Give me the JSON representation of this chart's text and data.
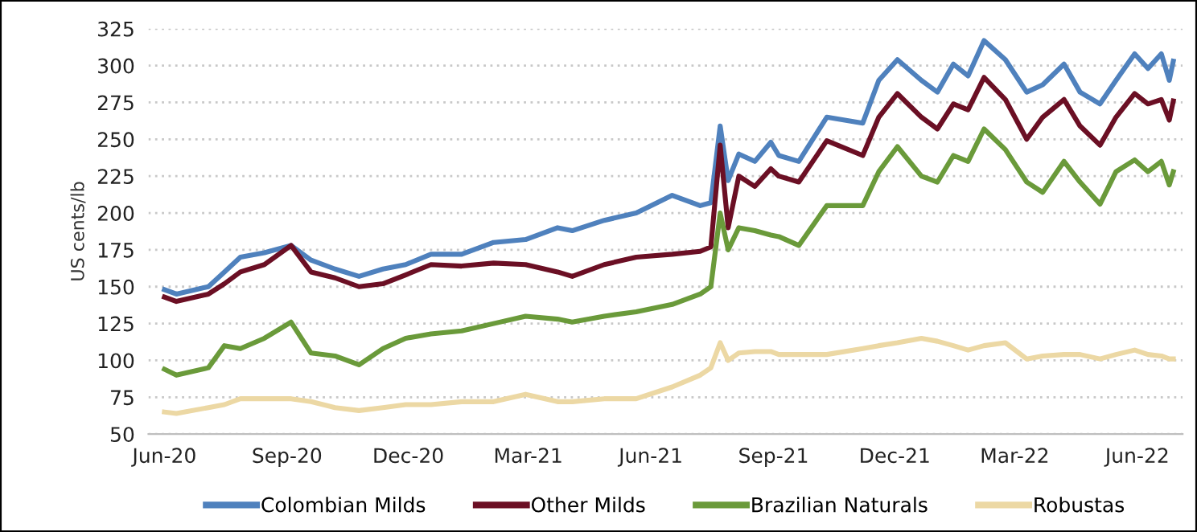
{
  "chart_data": {
    "type": "line",
    "ylabel": "US cents/lb",
    "x": [
      "2020-06-01",
      "2020-06-10",
      "2020-07-04",
      "2020-07-16",
      "2020-07-28",
      "2020-08-15",
      "2020-09-04",
      "2020-09-19",
      "2020-10-07",
      "2020-10-25",
      "2020-11-12",
      "2020-11-29",
      "2020-12-18",
      "2021-01-10",
      "2021-02-03",
      "2021-02-27",
      "2021-03-23",
      "2021-04-03",
      "2021-04-27",
      "2021-05-21",
      "2021-06-17",
      "2021-07-08",
      "2021-07-16",
      "2021-07-23",
      "2021-07-29",
      "2021-08-06",
      "2021-08-18",
      "2021-08-30",
      "2021-09-05",
      "2021-09-20",
      "2021-10-11",
      "2021-11-07",
      "2021-11-19",
      "2021-12-03",
      "2021-12-21",
      "2022-01-02",
      "2022-01-14",
      "2022-01-25",
      "2022-02-06",
      "2022-02-22",
      "2022-03-10",
      "2022-03-22",
      "2022-04-07",
      "2022-04-19",
      "2022-05-04",
      "2022-05-16",
      "2022-05-30",
      "2022-06-09",
      "2022-06-19",
      "2022-06-25",
      "2022-06-28"
    ],
    "series": [
      {
        "name": "Colombian Milds",
        "color": "#4f81bd",
        "values": [
          148,
          145,
          150,
          160,
          170,
          173,
          178,
          168,
          162,
          157,
          162,
          165,
          172,
          172,
          180,
          182,
          190,
          188,
          195,
          200,
          212,
          205,
          207,
          259,
          222,
          240,
          235,
          248,
          239,
          235,
          265,
          261,
          290,
          304,
          290,
          282,
          301,
          293,
          317,
          304,
          282,
          287,
          301,
          282,
          274,
          290,
          308,
          298,
          308,
          290,
          303
        ]
      },
      {
        "name": "Other Milds",
        "color": "#6b0f24",
        "values": [
          143,
          140,
          145,
          152,
          160,
          165,
          178,
          160,
          156,
          150,
          152,
          158,
          165,
          164,
          166,
          165,
          160,
          157,
          165,
          170,
          172,
          174,
          177,
          246,
          190,
          225,
          218,
          230,
          225,
          221,
          249,
          239,
          265,
          281,
          265,
          257,
          274,
          270,
          292,
          277,
          250,
          265,
          277,
          259,
          246,
          265,
          281,
          274,
          277,
          263,
          276
        ]
      },
      {
        "name": "Brazilian Naturals",
        "color": "#6a9a3a",
        "values": [
          94,
          90,
          95,
          110,
          108,
          115,
          126,
          105,
          103,
          97,
          108,
          115,
          118,
          120,
          125,
          130,
          128,
          126,
          130,
          133,
          138,
          145,
          150,
          200,
          175,
          190,
          188,
          185,
          184,
          178,
          205,
          205,
          228,
          245,
          225,
          221,
          239,
          235,
          257,
          243,
          221,
          214,
          235,
          221,
          206,
          228,
          236,
          228,
          235,
          219,
          228
        ]
      },
      {
        "name": "Robustas",
        "color": "#ecd8a4",
        "values": [
          65,
          64,
          68,
          70,
          74,
          74,
          74,
          72,
          68,
          66,
          68,
          70,
          70,
          72,
          72,
          77,
          72,
          72,
          74,
          74,
          82,
          90,
          95,
          112,
          100,
          105,
          106,
          106,
          104,
          104,
          104,
          108,
          110,
          112,
          115,
          113,
          110,
          107,
          110,
          112,
          101,
          103,
          104,
          104,
          101,
          104,
          107,
          104,
          103,
          101,
          101
        ]
      }
    ],
    "xlim": [
      "2020-05-20",
      "2022-07-05"
    ],
    "xticks": [
      {
        "value": "2020-06-01",
        "label": "Jun-20"
      },
      {
        "value": "2020-09-01",
        "label": "Sep-20"
      },
      {
        "value": "2020-12-01",
        "label": "Dec-20"
      },
      {
        "value": "2021-03-01",
        "label": "Mar-21"
      },
      {
        "value": "2021-06-01",
        "label": "Jun-21"
      },
      {
        "value": "2021-09-01",
        "label": "Sep-21"
      },
      {
        "value": "2021-12-01",
        "label": "Dec-21"
      },
      {
        "value": "2022-03-01",
        "label": "Mar-22"
      },
      {
        "value": "2022-06-01",
        "label": "Jun-22"
      }
    ],
    "ylim": [
      50,
      325
    ],
    "yticks": [
      50,
      75,
      100,
      125,
      150,
      175,
      200,
      225,
      250,
      275,
      300,
      325
    ],
    "grid": "y",
    "legend": "bottom",
    "marker": "none",
    "line_style": "solid"
  }
}
